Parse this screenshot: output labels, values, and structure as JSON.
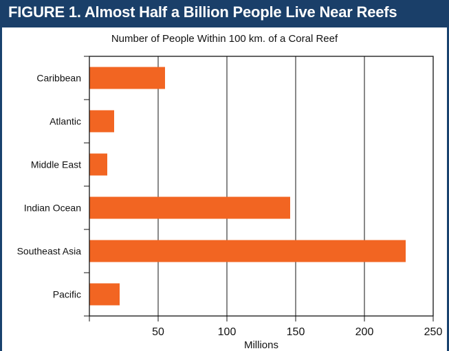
{
  "figure": {
    "title": "FIGURE 1. Almost Half a Billion People Live Near Reefs"
  },
  "colors": {
    "banner": "#1a3f69",
    "bar": "#f26522",
    "frame": "#19426e"
  },
  "chart_data": {
    "type": "bar",
    "orientation": "horizontal",
    "title": "Number of People Within 100 km. of a Coral Reef",
    "xlabel": "Millions",
    "ylabel": "",
    "categories": [
      "Caribbean",
      "Atlantic",
      "Middle East",
      "Indian Ocean",
      "Southeast Asia",
      "Pacific"
    ],
    "values": [
      55,
      18,
      13,
      146,
      230,
      22
    ],
    "xlim": [
      0,
      250
    ],
    "xticks": [
      "50",
      "100",
      "150",
      "200",
      "250"
    ],
    "grid": "vertical"
  }
}
